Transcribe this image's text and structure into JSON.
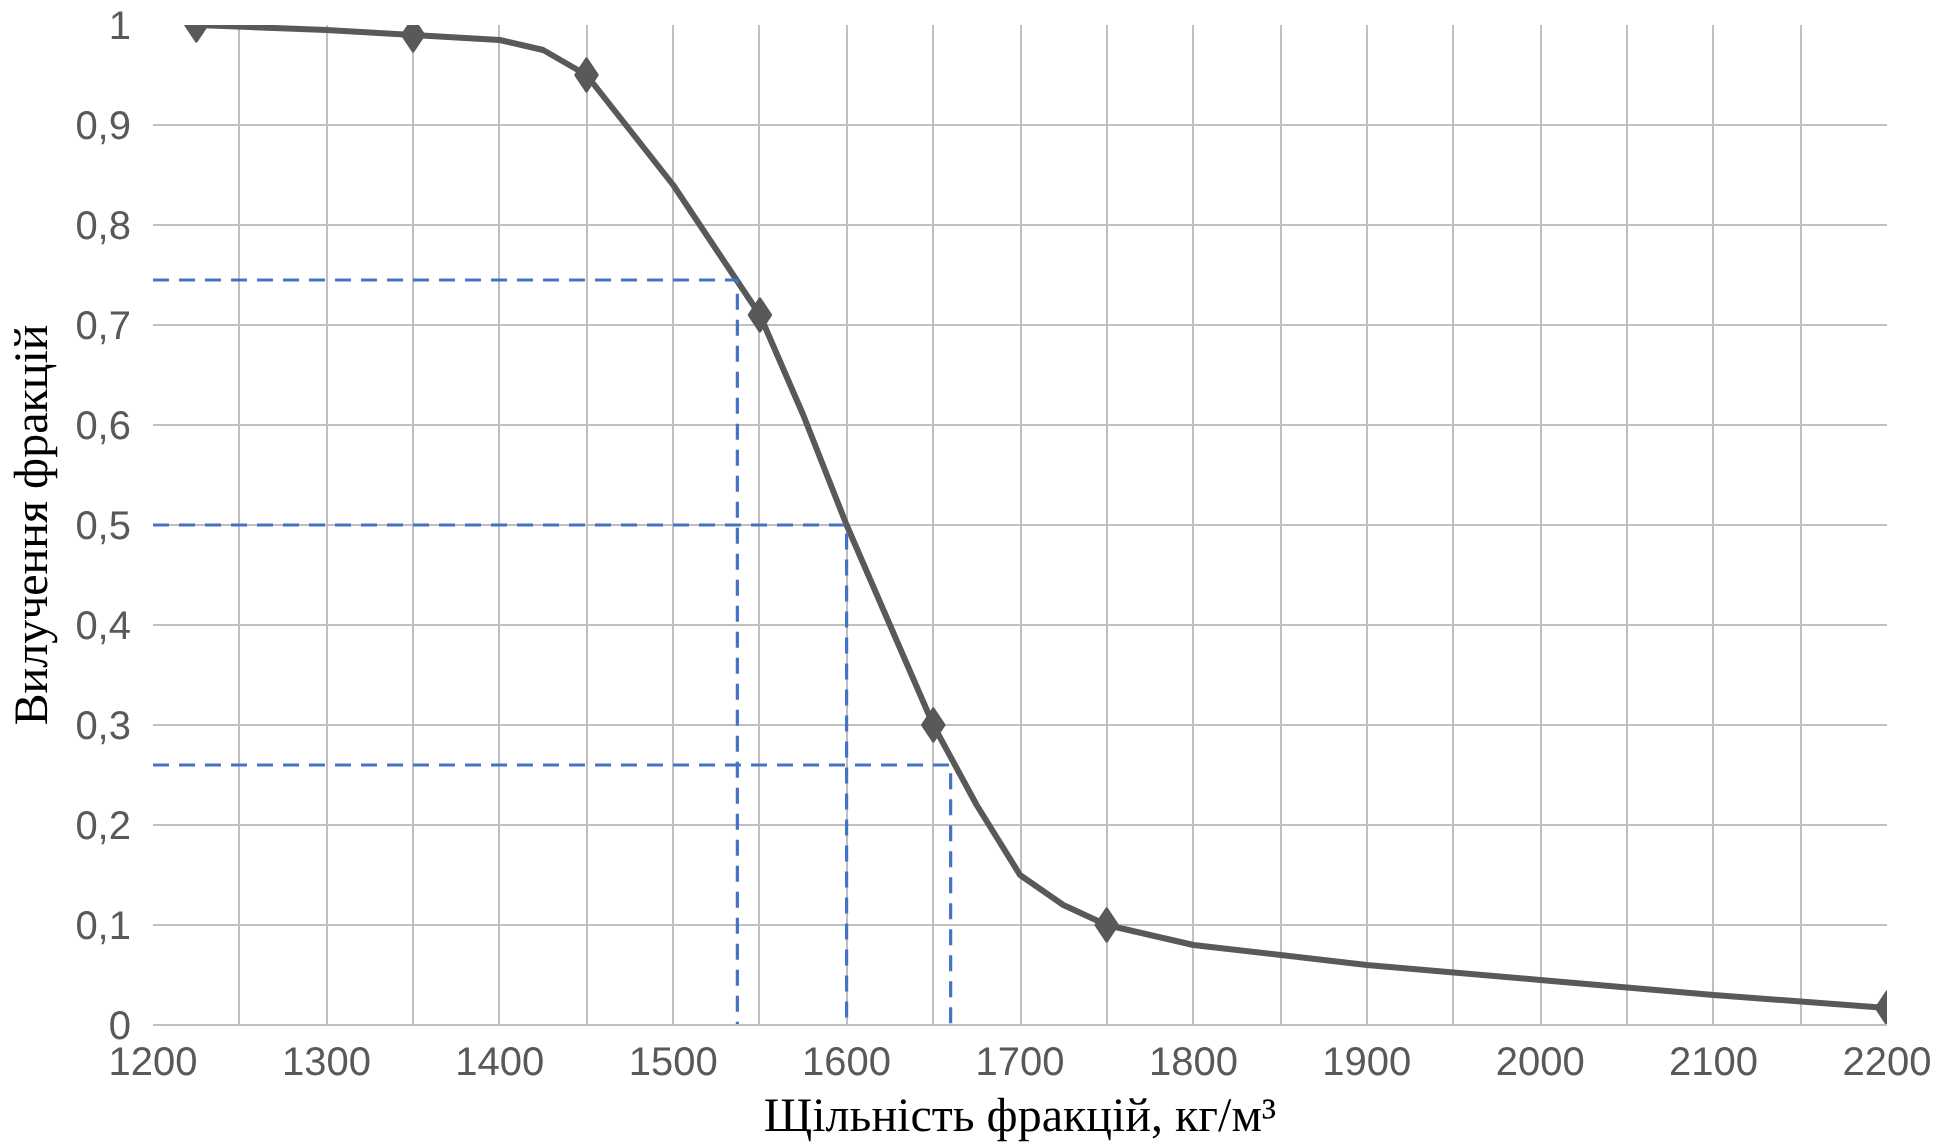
{
  "chart_data": {
    "type": "line",
    "xlabel": "Щільність фракцій, кг/м³",
    "ylabel": "Вилучення фракцій",
    "xlim": [
      1200,
      2200
    ],
    "ylim": [
      0,
      1
    ],
    "xticks": [
      1200,
      {
        "value": 1250,
        "label": null
      },
      1300,
      {
        "value": 1350,
        "label": null
      },
      1400,
      {
        "value": 1450,
        "label": null
      },
      1500,
      {
        "value": 1550,
        "label": null
      },
      1600,
      {
        "value": 1650,
        "label": null
      },
      1700,
      {
        "value": 1750,
        "label": null
      },
      1800,
      {
        "value": 1850,
        "label": null
      },
      1900,
      {
        "value": 1950,
        "label": null
      },
      2000,
      {
        "value": 2050,
        "label": null
      },
      2100,
      {
        "value": 2150,
        "label": null
      },
      2200
    ],
    "yticks": [
      0,
      {
        "value": 0.1,
        "label": "0,1"
      },
      {
        "value": 0.2,
        "label": "0,2"
      },
      {
        "value": 0.3,
        "label": "0,3"
      },
      {
        "value": 0.4,
        "label": "0,4"
      },
      {
        "value": 0.5,
        "label": "0,5"
      },
      {
        "value": 0.6,
        "label": "0,6"
      },
      {
        "value": 0.7,
        "label": "0,7"
      },
      {
        "value": 0.8,
        "label": "0,8"
      },
      {
        "value": 0.9,
        "label": "0,9"
      },
      1
    ],
    "grid": true,
    "series": [
      {
        "color": "#595959",
        "marker": "none",
        "line_style": "solid",
        "x": [
          1225,
          1300,
          1350,
          1400,
          1425,
          1450,
          1500,
          1550,
          1575,
          1600,
          1625,
          1650,
          1675,
          1700,
          1725,
          1750,
          1800,
          1900,
          2000,
          2100,
          2200
        ],
        "values": [
          1.0,
          0.995,
          0.99,
          0.985,
          0.975,
          0.95,
          0.84,
          0.71,
          0.61,
          0.5,
          0.4,
          0.3,
          0.22,
          0.15,
          0.12,
          0.1,
          0.08,
          0.06,
          0.045,
          0.03,
          0.017
        ]
      },
      {
        "type": "scatter",
        "color": "#595959",
        "marker": "diamond",
        "x": [
          1225,
          1350,
          1450,
          1550,
          1650,
          1750,
          2200
        ],
        "values": [
          1.0,
          0.99,
          0.95,
          0.71,
          0.3,
          0.1,
          0.017
        ]
      },
      {
        "color": "#4472c4",
        "marker": "none",
        "line_style": "dashed",
        "x": [
          1200,
          1537,
          1537
        ],
        "values": [
          0.745,
          0.745,
          0
        ]
      },
      {
        "color": "#4472c4",
        "marker": "none",
        "line_style": "dashed",
        "x": [
          1200,
          1600,
          1600
        ],
        "values": [
          0.5,
          0.5,
          0
        ]
      },
      {
        "color": "#4472c4",
        "marker": "none",
        "line_style": "dashed",
        "x": [
          1200,
          1660,
          1660
        ],
        "values": [
          0.26,
          0.26,
          0
        ]
      }
    ]
  }
}
